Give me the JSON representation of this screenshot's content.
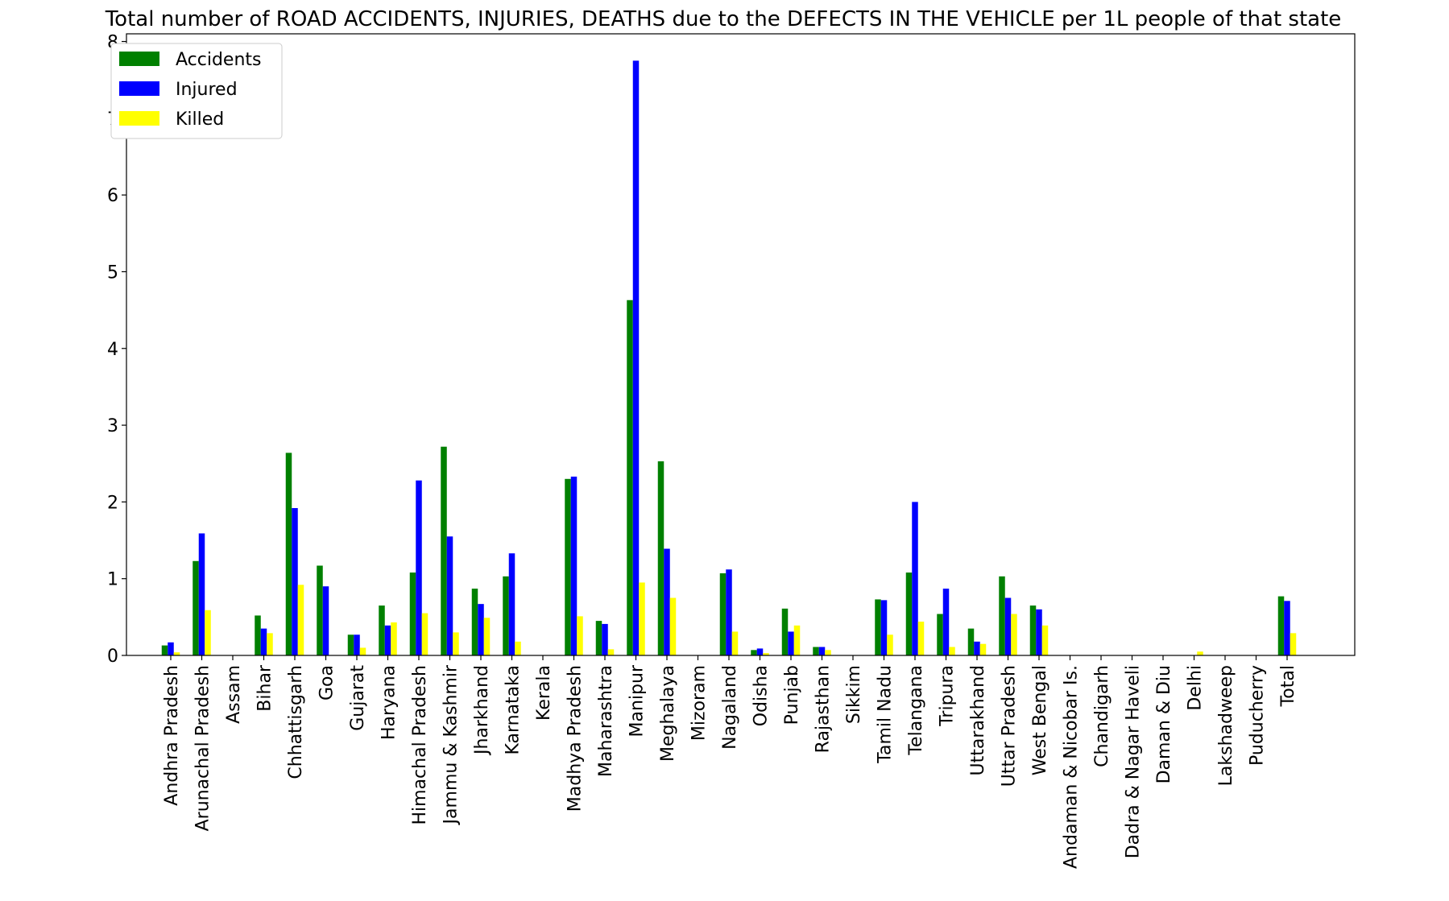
{
  "chart_data": {
    "type": "bar",
    "title": "Total number of ROAD ACCIDENTS, INJURIES, DEATHS due to the DEFECTS IN THE VEHICLE per 1L people of that state",
    "xlabel": "",
    "ylabel": "",
    "ylim": [
      0,
      8.1
    ],
    "yticks": [
      "0",
      "1",
      "2",
      "3",
      "4",
      "5",
      "6",
      "7",
      "8"
    ],
    "grid": false,
    "legend_position": "top-left",
    "categories": [
      "Andhra Pradesh",
      "Arunachal Pradesh",
      "Assam",
      "Bihar",
      "Chhattisgarh",
      "Goa",
      "Gujarat",
      "Haryana",
      "Himachal Pradesh",
      "Jammu & Kashmir",
      "Jharkhand",
      "Karnataka",
      "Kerala",
      "Madhya Pradesh",
      "Maharashtra",
      "Manipur",
      "Meghalaya",
      "Mizoram",
      "Nagaland",
      "Odisha",
      "Punjab",
      "Rajasthan",
      "Sikkim",
      "Tamil Nadu",
      "Telangana",
      "Tripura",
      "Uttarakhand",
      "Uttar Pradesh",
      "West Bengal",
      "Andaman & Nicobar Is.",
      "Chandigarh",
      "Dadra & Nagar Haveli",
      "Daman & Diu",
      "Delhi",
      "Lakshadweep",
      "Puducherry",
      "Total"
    ],
    "series": [
      {
        "name": "Accidents",
        "color": "#008000",
        "values": [
          0.13,
          1.23,
          0,
          0.52,
          2.64,
          1.17,
          0.27,
          0.65,
          1.08,
          2.72,
          0.87,
          1.03,
          0,
          2.3,
          0.45,
          4.63,
          2.53,
          0,
          1.07,
          0.07,
          0.61,
          0.11,
          0,
          0.73,
          1.08,
          0.54,
          0.35,
          1.03,
          0.65,
          0,
          0,
          0,
          0,
          0,
          0,
          0,
          0.77
        ]
      },
      {
        "name": "Injured",
        "color": "#0000ff",
        "values": [
          0.17,
          1.59,
          0,
          0.35,
          1.92,
          0.9,
          0.27,
          0.39,
          2.28,
          1.55,
          0.67,
          1.33,
          0,
          2.33,
          0.41,
          7.75,
          1.39,
          0,
          1.12,
          0.09,
          0.31,
          0.11,
          0,
          0.72,
          2.0,
          0.87,
          0.18,
          0.75,
          0.6,
          0,
          0,
          0,
          0,
          0,
          0,
          0,
          0.71
        ]
      },
      {
        "name": "Killed",
        "color": "#ffff00",
        "values": [
          0.04,
          0.59,
          0,
          0.29,
          0.92,
          0,
          0.1,
          0.43,
          0.55,
          0.3,
          0.49,
          0.18,
          0,
          0.51,
          0.08,
          0.95,
          0.75,
          0,
          0.31,
          0.03,
          0.39,
          0.07,
          0,
          0.27,
          0.44,
          0.11,
          0.15,
          0.54,
          0.39,
          0,
          0,
          0,
          0,
          0.05,
          0,
          0,
          0.29
        ]
      }
    ]
  }
}
